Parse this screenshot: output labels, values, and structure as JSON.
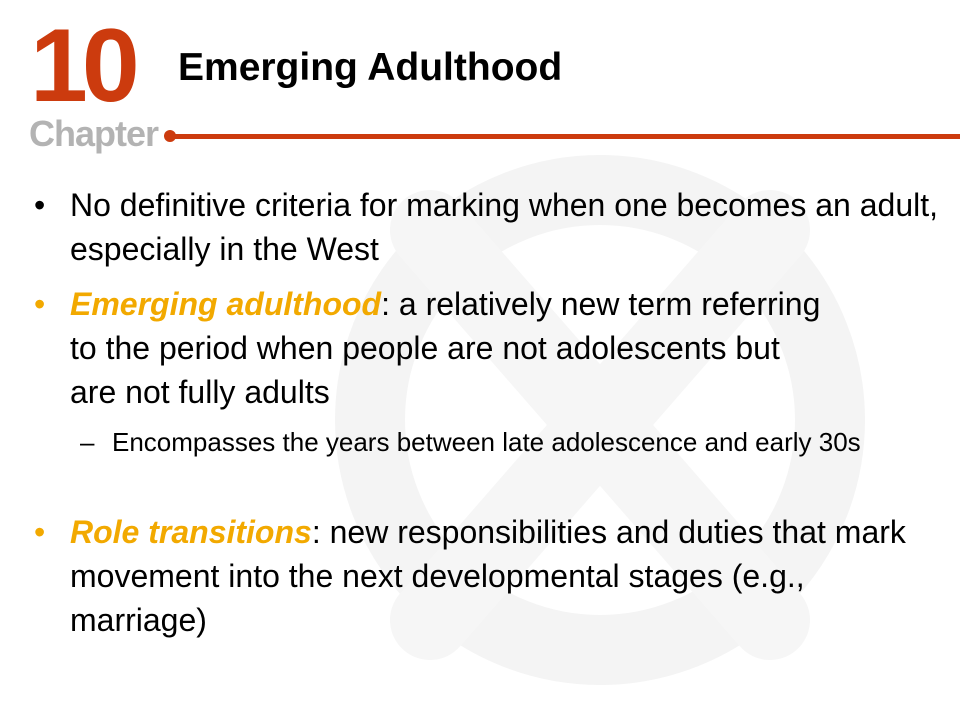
{
  "header": {
    "chapter_number": "10",
    "chapter_label": "Chapter",
    "title": "Emerging Adulthood"
  },
  "colors": {
    "accent": "#cc3b0e",
    "highlight": "#f2a900",
    "chapter_label": "#b3b3b3",
    "text": "#000000"
  },
  "bullets": [
    {
      "marker": "•",
      "term": "",
      "text": "No definitive criteria for marking when one becomes an adult, especially in the West"
    },
    {
      "marker": "•",
      "term": "Emerging adulthood",
      "text": ": a relatively new term referring to the period when people are not adolescents but are not fully adults"
    },
    {
      "marker": "–",
      "term": "",
      "text": "Encompasses the years between late adolescence and early 30s"
    },
    {
      "marker": "•",
      "term": "Role transitions",
      "text": ": new responsibilities and duties that mark movement into the next developmental stages (e.g., marriage)"
    }
  ]
}
